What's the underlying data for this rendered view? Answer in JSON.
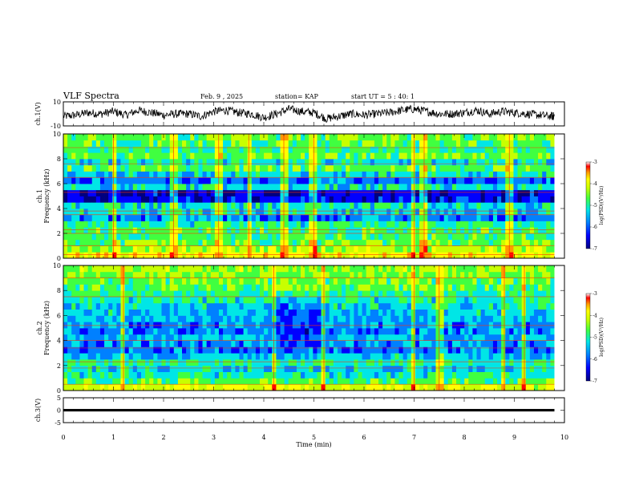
{
  "header": {
    "title": "VLF Spectra",
    "date": "Feb. 9 , 2025",
    "station": "station= KAP",
    "start": "start UT = 5 : 40: 1"
  },
  "colors": {
    "line": "#000000",
    "background": "#ffffff",
    "spectrogram_colormap": [
      "#00007f",
      "#0000ff",
      "#0080ff",
      "#00e6e6",
      "#40ff40",
      "#c8ff00",
      "#ffff00",
      "#ff9900",
      "#ff0000",
      "#ffffff"
    ]
  },
  "chart_data": [
    {
      "type": "line",
      "id": "ch1-waveform",
      "ylabel": "ch.1(V)",
      "ylim": [
        -10,
        10
      ],
      "y_ticks": [
        "10",
        "-10"
      ],
      "x": [
        0,
        0.25,
        0.5,
        0.75,
        1,
        1.25,
        1.5,
        1.75,
        2,
        2.25,
        2.5,
        2.75,
        3,
        3.25,
        3.5,
        3.75,
        4,
        4.25,
        4.5,
        4.75,
        5,
        5.25,
        5.5,
        5.75,
        6,
        6.25,
        6.5,
        6.75,
        7,
        7.25,
        7.5,
        7.75,
        8,
        8.25,
        8.5,
        8.75,
        9,
        9.25,
        9.5,
        9.75
      ],
      "values": [
        -2,
        -1,
        1,
        0,
        2,
        -1,
        3,
        1,
        -1,
        0,
        0,
        -2,
        2,
        3,
        1,
        0,
        -3,
        0,
        4,
        2,
        1,
        -4,
        -2,
        0,
        -1,
        0,
        1,
        3,
        4,
        2,
        0,
        0,
        1,
        3,
        0,
        2,
        1,
        0,
        -1,
        -2
      ]
    },
    {
      "type": "heatmap",
      "id": "ch1-spectrogram",
      "ylabel": "ch.1\nFrequency (kHz)",
      "ylim": [
        0,
        10
      ],
      "y_ticks": [
        "0",
        "2",
        "4",
        "6",
        "8",
        "10"
      ],
      "colorbar": {
        "label": "log(PSD)(V²/Hz)",
        "ticks": [
          "-3",
          "-4",
          "-5",
          "-6",
          "-7"
        ],
        "range": [
          -7,
          -3
        ]
      },
      "freq_khz": [
        0,
        0.5,
        1,
        1.5,
        2,
        2.5,
        3,
        3.5,
        4,
        4.5,
        5,
        5.5,
        6,
        6.5,
        7,
        7.5,
        8,
        8.5,
        9,
        9.5
      ],
      "log_psd": [
        -4.2,
        -4.6,
        -4.9,
        -5.1,
        -5.1,
        -5.3,
        -5.9,
        -5.5,
        -5.4,
        -6.4,
        -6.5,
        -5.4,
        -6.0,
        -5.5,
        -5.0,
        -5.4,
        -4.9,
        -5.2,
        -5.0,
        -4.9
      ],
      "time_events_min": [
        1.0,
        2.2,
        3.1,
        3.7,
        4.4,
        5.0,
        7.0,
        7.2,
        8.9
      ]
    },
    {
      "type": "heatmap",
      "id": "ch2-spectrogram",
      "ylabel": "ch.2\nFrequency (kHz)",
      "ylim": [
        0,
        10
      ],
      "y_ticks": [
        "0",
        "2",
        "4",
        "6",
        "8",
        "10"
      ],
      "colorbar": {
        "label": "log(PSD)(V²/Hz)",
        "ticks": [
          "-3",
          "-4",
          "-5",
          "-6",
          "-7"
        ],
        "range": [
          -7,
          -3
        ]
      },
      "freq_khz": [
        0,
        0.5,
        1,
        1.5,
        2,
        2.5,
        3,
        3.5,
        4,
        4.5,
        5,
        5.5,
        6,
        6.5,
        7,
        7.5,
        8,
        8.5,
        9,
        9.5
      ],
      "log_psd": [
        -4.4,
        -5.0,
        -5.3,
        -5.5,
        -5.2,
        -5.6,
        -6.0,
        -5.8,
        -5.7,
        -5.9,
        -5.8,
        -5.7,
        -5.6,
        -5.5,
        -5.3,
        -5.2,
        -5.0,
        -4.9,
        -4.8,
        -4.7
      ],
      "time_events_min": [
        1.2,
        4.2,
        5.2,
        7.0,
        7.5,
        8.8,
        9.2
      ],
      "quiet_interval_min": [
        4.2,
        5.2
      ]
    },
    {
      "type": "line",
      "id": "ch3-waveform",
      "ylabel": "ch.3(V)",
      "ylim": [
        -5,
        5
      ],
      "y_ticks": [
        "5",
        "0",
        "-5"
      ],
      "x": [
        0,
        9.8
      ],
      "values": [
        0,
        0
      ],
      "band_halfwidth_v": 0.5
    }
  ],
  "xaxis": {
    "label": "Time (min)",
    "range": [
      0,
      10
    ],
    "ticks": [
      "0",
      "1",
      "2",
      "3",
      "4",
      "5",
      "6",
      "7",
      "8",
      "9",
      "10"
    ]
  }
}
